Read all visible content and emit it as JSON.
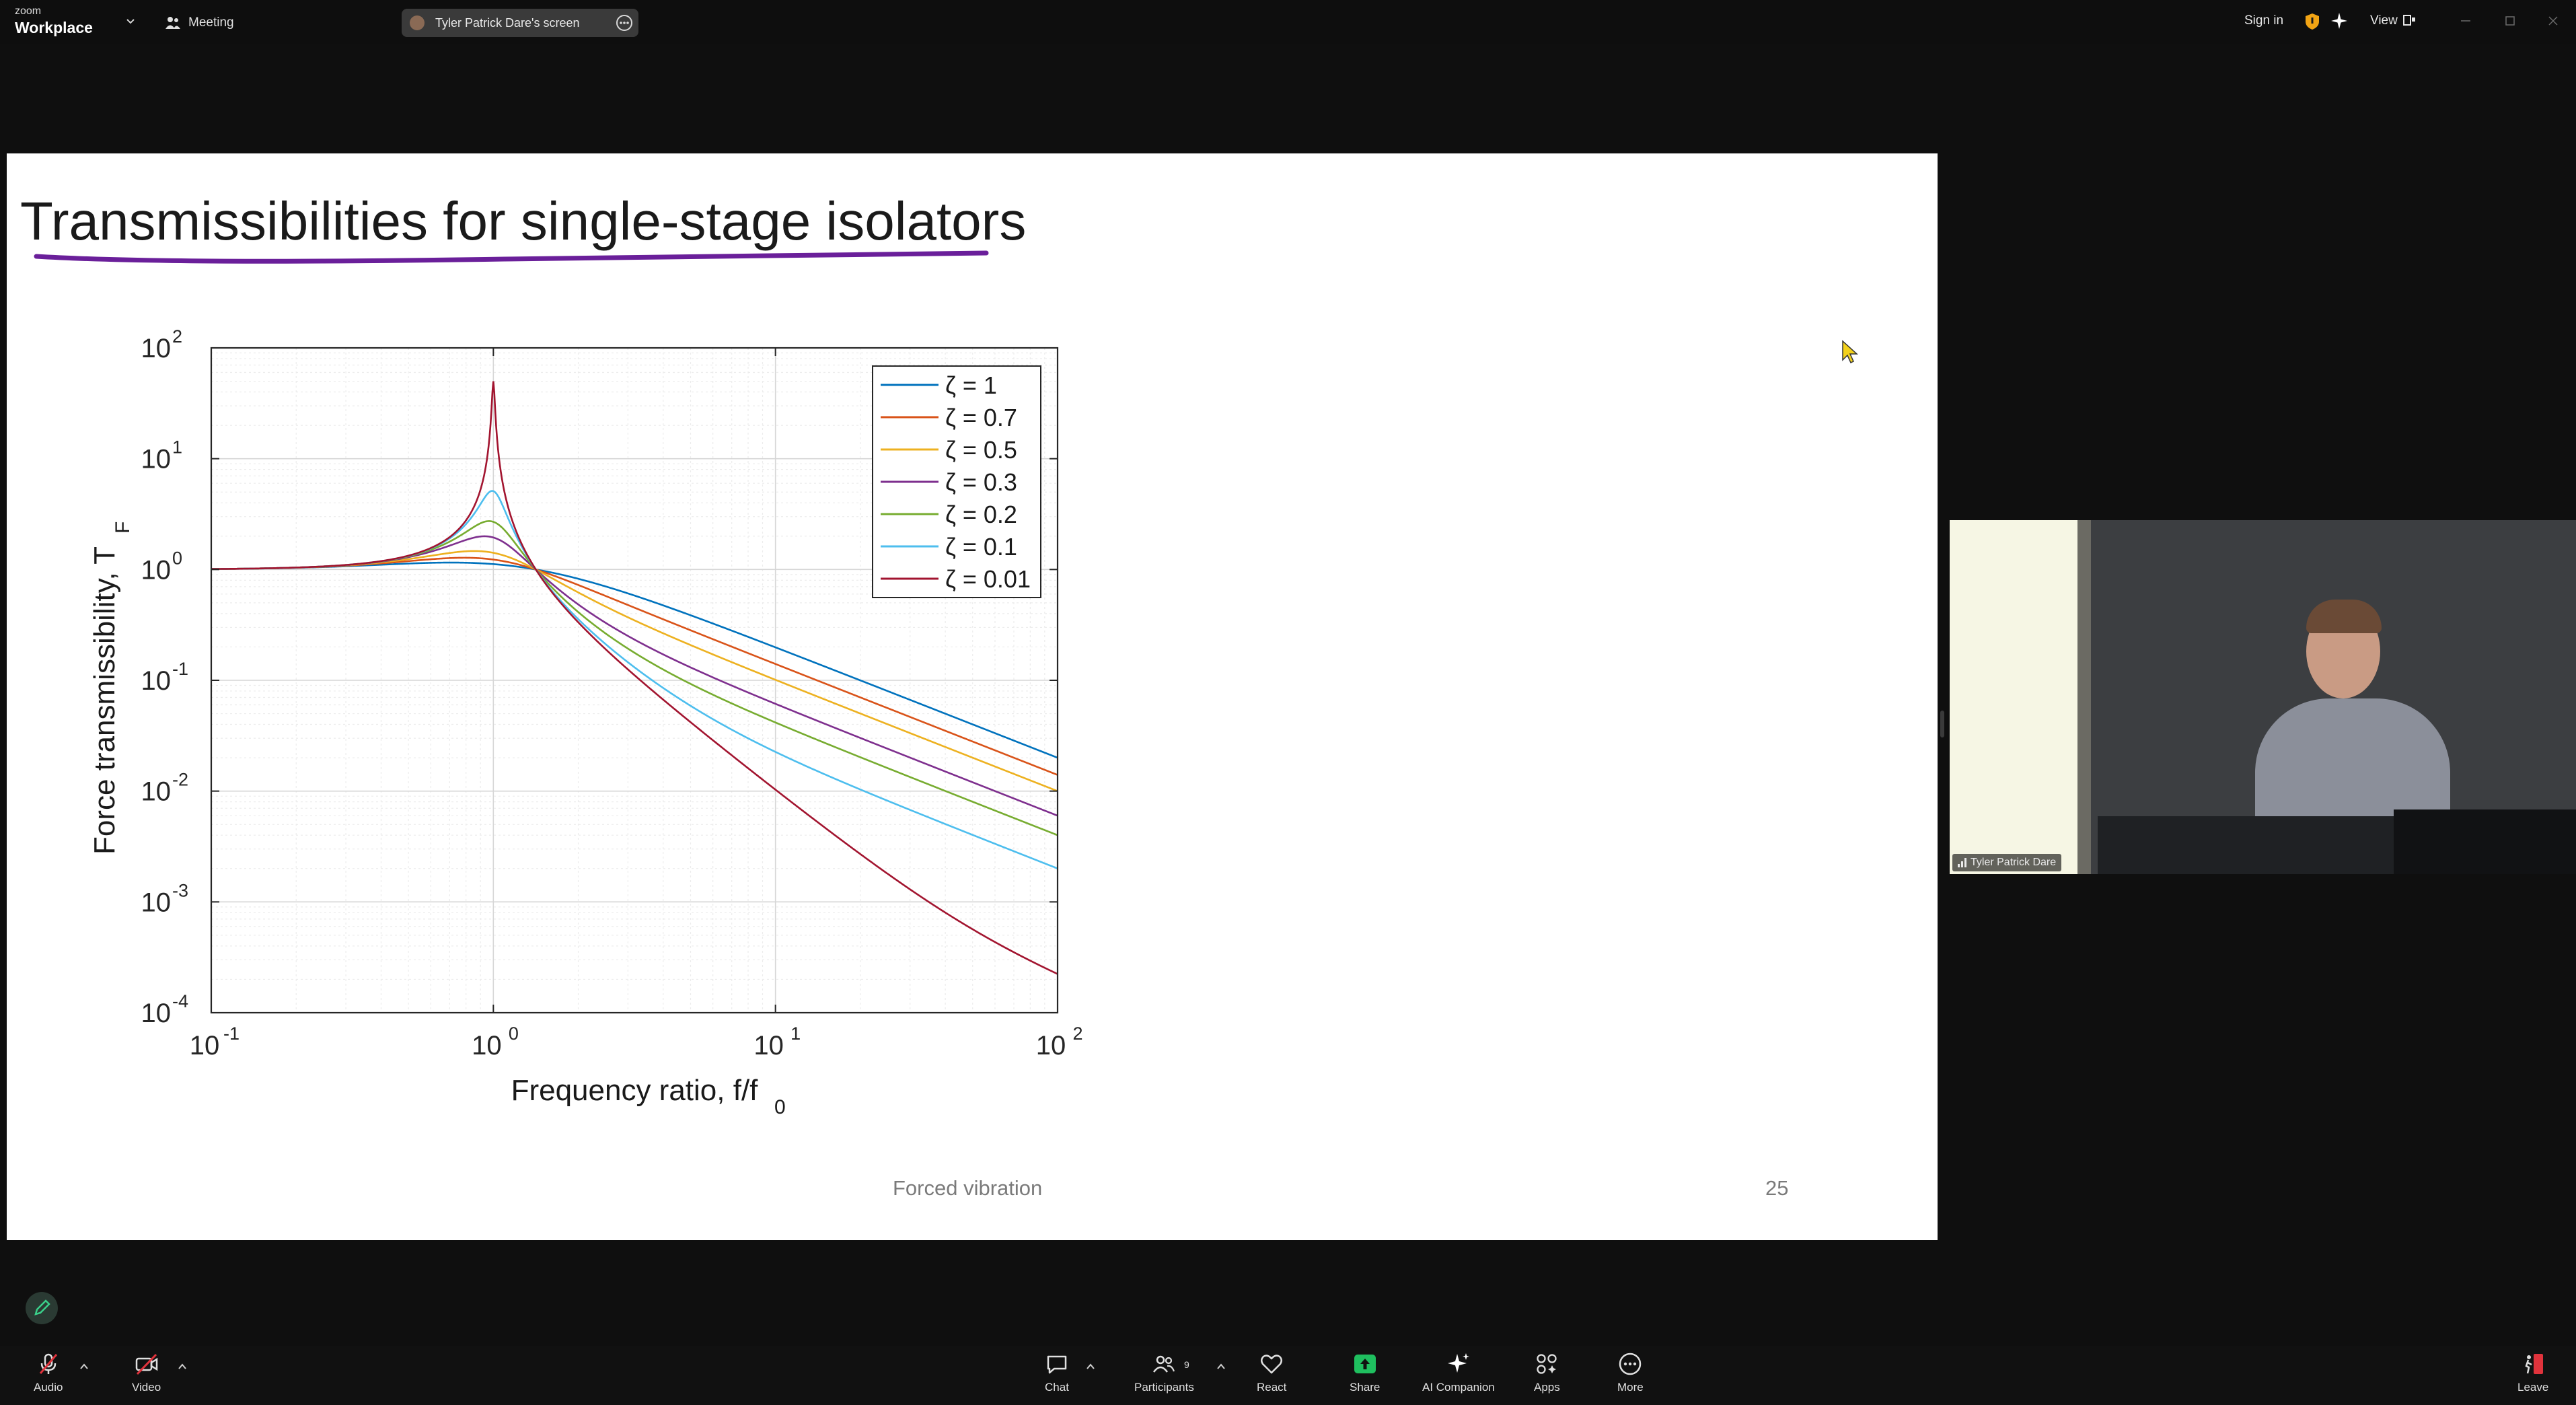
{
  "app": {
    "logo_top": "zoom",
    "logo_bottom": "Workplace"
  },
  "topbar": {
    "meeting_label": "Meeting",
    "share_label": "Tyler Patrick Dare's screen",
    "signin_label": "Sign in",
    "view_label": "View"
  },
  "slide": {
    "title": "Transmissibilities for single-stage isolators",
    "footer_center": "Forced vibration",
    "page_number": "25",
    "underline_color": "#6a1f9a"
  },
  "chart_data": {
    "type": "line",
    "title": "",
    "xlabel": "Frequency ratio, f/f",
    "xlabel_subscript": "0",
    "ylabel": "Force transmissibility, T",
    "ylabel_subscript": "F",
    "x_scale": "log",
    "y_scale": "log",
    "xlim": [
      0.1,
      100
    ],
    "ylim": [
      0.0001,
      100
    ],
    "x_ticks": [
      {
        "base": "10",
        "exp": "-1"
      },
      {
        "base": "10",
        "exp": "0"
      },
      {
        "base": "10",
        "exp": "1"
      },
      {
        "base": "10",
        "exp": "2"
      }
    ],
    "y_ticks": [
      {
        "base": "10",
        "exp": "-4"
      },
      {
        "base": "10",
        "exp": "-3"
      },
      {
        "base": "10",
        "exp": "-2"
      },
      {
        "base": "10",
        "exp": "-1"
      },
      {
        "base": "10",
        "exp": "0"
      },
      {
        "base": "10",
        "exp": "1"
      },
      {
        "base": "10",
        "exp": "2"
      }
    ],
    "grid": true,
    "legend_position": "top-right",
    "series": [
      {
        "name": "ζ = 1",
        "zeta": 1,
        "color": "#0072BD",
        "points": [
          [
            0.1,
            1.0
          ],
          [
            1,
            1.118
          ],
          [
            10,
            0.201
          ],
          [
            100,
            0.02
          ]
        ]
      },
      {
        "name": "ζ = 0.7",
        "zeta": 0.7,
        "color": "#D95319",
        "points": [
          [
            0.1,
            1.01
          ],
          [
            1,
            1.22
          ],
          [
            10,
            0.143
          ],
          [
            100,
            0.014
          ]
        ]
      },
      {
        "name": "ζ = 0.5",
        "zeta": 0.5,
        "color": "#EDB120",
        "points": [
          [
            0.1,
            1.01
          ],
          [
            1,
            1.414
          ],
          [
            10,
            0.104
          ],
          [
            100,
            0.01
          ]
        ]
      },
      {
        "name": "ζ = 0.3",
        "zeta": 0.3,
        "color": "#7E2F8E",
        "points": [
          [
            0.1,
            1.01
          ],
          [
            1,
            1.944
          ],
          [
            10,
            0.063
          ],
          [
            100,
            0.006
          ]
        ]
      },
      {
        "name": "ζ = 0.2",
        "zeta": 0.2,
        "color": "#77AC30",
        "points": [
          [
            0.1,
            1.01
          ],
          [
            1,
            2.69
          ],
          [
            10,
            0.042
          ],
          [
            100,
            0.004
          ]
        ]
      },
      {
        "name": "ζ = 0.1",
        "zeta": 0.1,
        "color": "#4DBEEE",
        "points": [
          [
            0.1,
            1.01
          ],
          [
            1,
            5.1
          ],
          [
            10,
            0.022
          ],
          [
            100,
            0.002
          ]
        ]
      },
      {
        "name": "ζ = 0.01",
        "zeta": 0.01,
        "color": "#A2142F",
        "points": [
          [
            0.1,
            1.01
          ],
          [
            1,
            50.0
          ],
          [
            10,
            0.0101
          ],
          [
            100,
            0.0002
          ]
        ]
      }
    ]
  },
  "video": {
    "participant_name": "Tyler Patrick Dare"
  },
  "toolbar": {
    "audio": "Audio",
    "video": "Video",
    "chat": "Chat",
    "participants": "Participants",
    "participants_count": "9",
    "react": "React",
    "share": "Share",
    "ai_companion": "AI Companion",
    "apps": "Apps",
    "more": "More",
    "leave": "Leave"
  },
  "colors": {
    "share_green": "#1fbf5f",
    "mute_red": "#e0333c",
    "leave_red": "#e0333c"
  }
}
